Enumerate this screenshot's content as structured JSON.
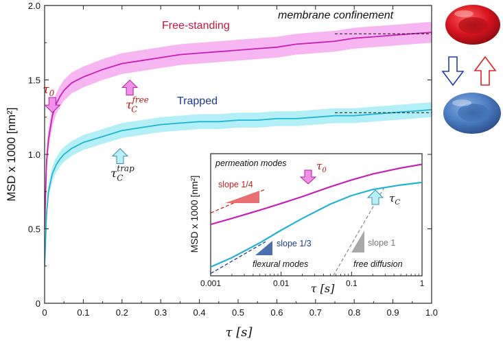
{
  "chart_data": [
    {
      "type": "line",
      "xlabel": "τ [s]",
      "ylabel": "MSD x 1000 [nm²]",
      "xlim": [
        0,
        1.0
      ],
      "ylim": [
        0,
        2.0
      ],
      "xticks": [
        "0",
        "0.1",
        "0.2",
        "0.3",
        "0.4",
        "0.5",
        "0.6",
        "0.7",
        "0.8",
        "0.9",
        "1.0"
      ],
      "xtick_values": [
        0,
        0.1,
        0.2,
        0.3,
        0.4,
        0.5,
        0.6,
        0.7,
        0.8,
        0.9,
        1.0
      ],
      "yticks": [
        "0",
        "0.5",
        "1.0",
        "1.5",
        "2.0"
      ],
      "ytick_values": [
        0,
        0.5,
        1.0,
        1.5,
        2.0
      ],
      "series": [
        {
          "name": "Free-standing",
          "color": "#c81eb4",
          "band_color": "#f6a8f0",
          "x": [
            0,
            0.005,
            0.01,
            0.02,
            0.03,
            0.04,
            0.05,
            0.07,
            0.1,
            0.15,
            0.2,
            0.25,
            0.3,
            0.35,
            0.4,
            0.45,
            0.5,
            0.55,
            0.6,
            0.65,
            0.7,
            0.75,
            0.8,
            0.85,
            0.9,
            0.95,
            1.0
          ],
          "y": [
            0.5,
            0.95,
            1.1,
            1.26,
            1.34,
            1.39,
            1.43,
            1.48,
            1.52,
            1.57,
            1.61,
            1.63,
            1.65,
            1.67,
            1.68,
            1.69,
            1.7,
            1.71,
            1.72,
            1.74,
            1.75,
            1.76,
            1.78,
            1.79,
            1.8,
            1.81,
            1.82
          ],
          "band": 0.07
        },
        {
          "name": "Trapped",
          "color": "#1eb4d2",
          "band_color": "#a6ecf6",
          "x": [
            0,
            0.005,
            0.01,
            0.02,
            0.03,
            0.04,
            0.05,
            0.07,
            0.1,
            0.15,
            0.2,
            0.25,
            0.3,
            0.35,
            0.4,
            0.45,
            0.5,
            0.55,
            0.6,
            0.65,
            0.7,
            0.75,
            0.8,
            0.85,
            0.9,
            0.95,
            1.0
          ],
          "y": [
            0.25,
            0.6,
            0.75,
            0.87,
            0.93,
            0.97,
            1.0,
            1.04,
            1.08,
            1.12,
            1.16,
            1.18,
            1.2,
            1.21,
            1.22,
            1.22,
            1.23,
            1.23,
            1.24,
            1.24,
            1.25,
            1.26,
            1.26,
            1.27,
            1.28,
            1.29,
            1.3
          ],
          "band": 0.05
        }
      ],
      "plateaus": [
        {
          "series": "Free-standing",
          "x_from": 0.75,
          "x_to": 1.0,
          "y": 1.81
        },
        {
          "series": "Trapped",
          "x_from": 0.75,
          "x_to": 1.0,
          "y": 1.28
        }
      ],
      "annotations": [
        {
          "id": "tau0",
          "base": "τ",
          "sub": "0",
          "x": 0.02,
          "y": 1.29,
          "arrow": "down",
          "fill": "#f090e8",
          "stroke": "#b21ea0"
        },
        {
          "id": "tauc-free",
          "base": "τ",
          "sub": "C",
          "sup": "free",
          "x": 0.22,
          "y": 1.49,
          "arrow": "up",
          "fill": "#f090e8",
          "stroke": "#b21ea0"
        },
        {
          "id": "tauc-trap",
          "base": "τ",
          "sub": "C",
          "sup": "trap",
          "x": 0.195,
          "y": 1.03,
          "arrow": "up",
          "fill": "#b8f0fa",
          "stroke": "#3a90a8"
        }
      ],
      "labels": {
        "free_standing": "Free-standing",
        "trapped": "Trapped",
        "confinement": "membrane confinement"
      }
    },
    {
      "type": "line",
      "scale": "log-log",
      "xlabel": "τ [s]",
      "ylabel": "MSD x 1000 [nm²]",
      "xlim": [
        0.001,
        1
      ],
      "xticks": [
        "0.001",
        "0.01",
        "0.1",
        "1"
      ],
      "xtick_values": [
        0.001,
        0.01,
        0.1,
        1
      ],
      "series": [
        {
          "name": "Free-standing",
          "color": "#c81eb4",
          "x": [
            0.001,
            0.002,
            0.005,
            0.01,
            0.02,
            0.05,
            0.1,
            0.2,
            0.5,
            1
          ],
          "y": [
            0.58,
            0.65,
            0.76,
            0.86,
            0.98,
            1.18,
            1.34,
            1.5,
            1.68,
            1.8
          ]
        },
        {
          "name": "Trapped",
          "color": "#1eb4d2",
          "x": [
            0.001,
            0.002,
            0.005,
            0.01,
            0.02,
            0.05,
            0.1,
            0.2,
            0.5,
            1
          ],
          "y": [
            0.26,
            0.31,
            0.41,
            0.52,
            0.65,
            0.85,
            1.0,
            1.12,
            1.22,
            1.28
          ]
        }
      ],
      "guides": [
        {
          "name": "slope 1/4",
          "slope": 0.25,
          "color": "#d02020",
          "triangle_fill": "#e87070"
        },
        {
          "name": "slope 1/3",
          "slope": 0.3333,
          "color": "#1a3c90",
          "triangle_fill": "#4a70b0"
        },
        {
          "name": "slope 1",
          "slope": 1,
          "color": "#909090",
          "triangle_fill": "#a8a8a8"
        }
      ],
      "labels": {
        "permeation": "permeation modes",
        "flexural": "flexural  modes",
        "free_diffusion": "free diffusion",
        "tau0_base": "τ",
        "tau0_sub": "0",
        "tauc_base": "τ",
        "tauc_sub": "C"
      }
    }
  ],
  "colors": {
    "red_cell": "#d8141e",
    "blue_cell": "#3c6eb4",
    "arrow_blue": "#1e3cb4",
    "arrow_red": "#e02020"
  }
}
